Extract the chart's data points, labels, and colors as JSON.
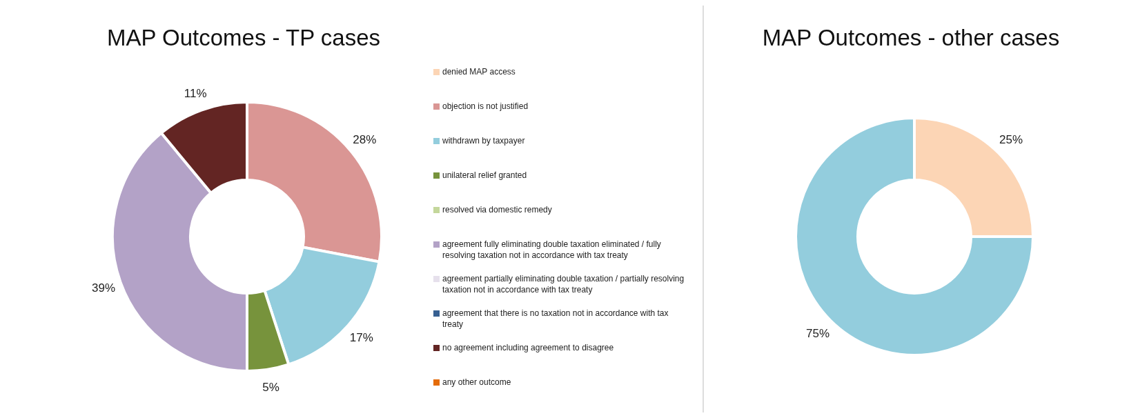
{
  "chart_data": [
    {
      "type": "donut",
      "title": "MAP Outcomes - TP cases",
      "legend": "right",
      "categories": [
        "denied MAP access",
        "objection is not justified",
        "withdrawn by taxpayer",
        "unilateral relief granted",
        "resolved via domestic remedy",
        "agreement fully eliminating double taxation eliminated / fully resolving taxation not in accordance with tax treaty",
        "agreement partially eliminating double taxation / partially resolving taxation not in accordance with tax treaty",
        "agreement that there is no taxation not in accordance with tax treaty",
        "no agreement including agreement to disagree",
        "any other outcome"
      ],
      "values": [
        0,
        28,
        17,
        5,
        0,
        39,
        0,
        0,
        11,
        0
      ],
      "value_labels": [
        null,
        "28%",
        "17%",
        "5%",
        null,
        "39%",
        null,
        null,
        "11%",
        null
      ],
      "colors": [
        "#fcd5b5",
        "#da9694",
        "#93cddd",
        "#77933c",
        "#c4d79b",
        "#b3a2c7",
        "#e6e0ec",
        "#376092",
        "#632523",
        "#e46c0a"
      ]
    },
    {
      "type": "donut",
      "title": "MAP Outcomes - other cases",
      "legend": false,
      "categories": [
        null,
        null
      ],
      "values": [
        25,
        75
      ],
      "value_labels": [
        "25%",
        "75%"
      ],
      "colors": [
        "#fcd5b5",
        "#93cddd"
      ]
    }
  ]
}
